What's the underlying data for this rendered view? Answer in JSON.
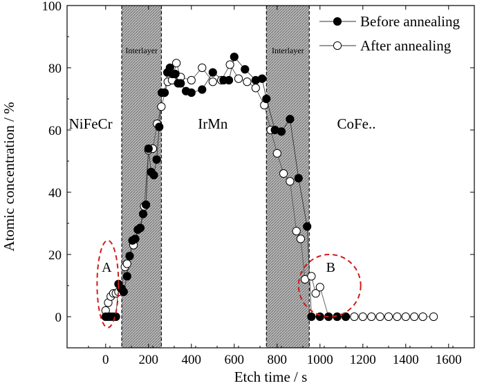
{
  "chart_data": {
    "type": "scatter",
    "xlabel": "Etch time / s",
    "ylabel": "Atomic concentration / %",
    "xlim": [
      -180,
      1720
    ],
    "ylim": [
      -10,
      100
    ],
    "x_ticks": [
      0,
      200,
      400,
      600,
      800,
      1000,
      1200,
      1400,
      1600
    ],
    "y_ticks": [
      0,
      20,
      40,
      60,
      80,
      100
    ],
    "grid": false,
    "legend_position": "top-right",
    "series": [
      {
        "name": "Before annealing",
        "marker": "filled-circle",
        "color": "#000000",
        "x": [
          0,
          12,
          24,
          36,
          48,
          60,
          72,
          84,
          100,
          112,
          125,
          138,
          150,
          162,
          175,
          188,
          200,
          212,
          225,
          238,
          250,
          262,
          275,
          288,
          300,
          312,
          325,
          338,
          350,
          375,
          400,
          450,
          500,
          550,
          575,
          600,
          650,
          700,
          730,
          750,
          790,
          820,
          860,
          900,
          940,
          960,
          1000,
          1040,
          1080,
          1120
        ],
        "y": [
          0,
          0,
          0,
          0,
          0,
          10.5,
          9,
          8,
          13,
          19.5,
          24.5,
          25,
          28,
          28.5,
          33,
          36,
          54,
          46.5,
          45.5,
          50.5,
          61,
          72,
          72,
          78.5,
          80,
          78,
          78,
          75,
          75,
          72.5,
          72,
          73,
          78.5,
          76,
          76,
          83.5,
          79.5,
          76,
          76.5,
          70,
          60,
          59.5,
          63.5,
          44.5,
          29,
          0,
          0,
          0,
          0,
          0
        ]
      },
      {
        "name": "After annealing",
        "marker": "open-circle",
        "color": "#000000",
        "x": [
          0,
          12,
          24,
          36,
          48,
          60,
          75,
          90,
          100,
          130,
          160,
          180,
          200,
          220,
          240,
          260,
          290,
          310,
          330,
          350,
          400,
          450,
          500,
          540,
          580,
          620,
          660,
          700,
          740,
          770,
          800,
          830,
          860,
          890,
          910,
          930,
          960,
          980,
          1000,
          1040,
          1080,
          1120,
          1160,
          1200,
          1240,
          1280,
          1320,
          1360,
          1400,
          1440,
          1480,
          1530
        ],
        "y": [
          2,
          4.5,
          6.5,
          7.5,
          7.5,
          8,
          9,
          16,
          17,
          23,
          28.5,
          35.5,
          53.5,
          54,
          62,
          67.5,
          75.5,
          76,
          81.5,
          77,
          76,
          80,
          75.5,
          76,
          81,
          76.5,
          75.5,
          73.5,
          68,
          60,
          52.5,
          46,
          43.5,
          27.5,
          25,
          12,
          13,
          7.5,
          9.5,
          0,
          0,
          0,
          0,
          0,
          0,
          0,
          0,
          0,
          0,
          0,
          0,
          0
        ]
      }
    ],
    "shaded_regions": [
      {
        "x0": 75,
        "x1": 260,
        "label": "Interlayer"
      },
      {
        "x0": 750,
        "x1": 950,
        "label": "Interlayer"
      }
    ],
    "region_labels": [
      {
        "text": "NiFeCr",
        "x": -70,
        "y": 62
      },
      {
        "text": "IrMn",
        "x": 500,
        "y": 62
      },
      {
        "text": "CoFe..",
        "x": 1170,
        "y": 62
      }
    ],
    "circle_annotations": [
      {
        "label": "A",
        "cx": 10,
        "cy": 10.5,
        "rx": 50,
        "ry": 14,
        "label_x": 5,
        "label_y": 16
      },
      {
        "label": "B",
        "cx": 1045,
        "cy": 10,
        "rx": 145,
        "ry": 10,
        "label_x": 1050,
        "label_y": 16
      }
    ]
  }
}
